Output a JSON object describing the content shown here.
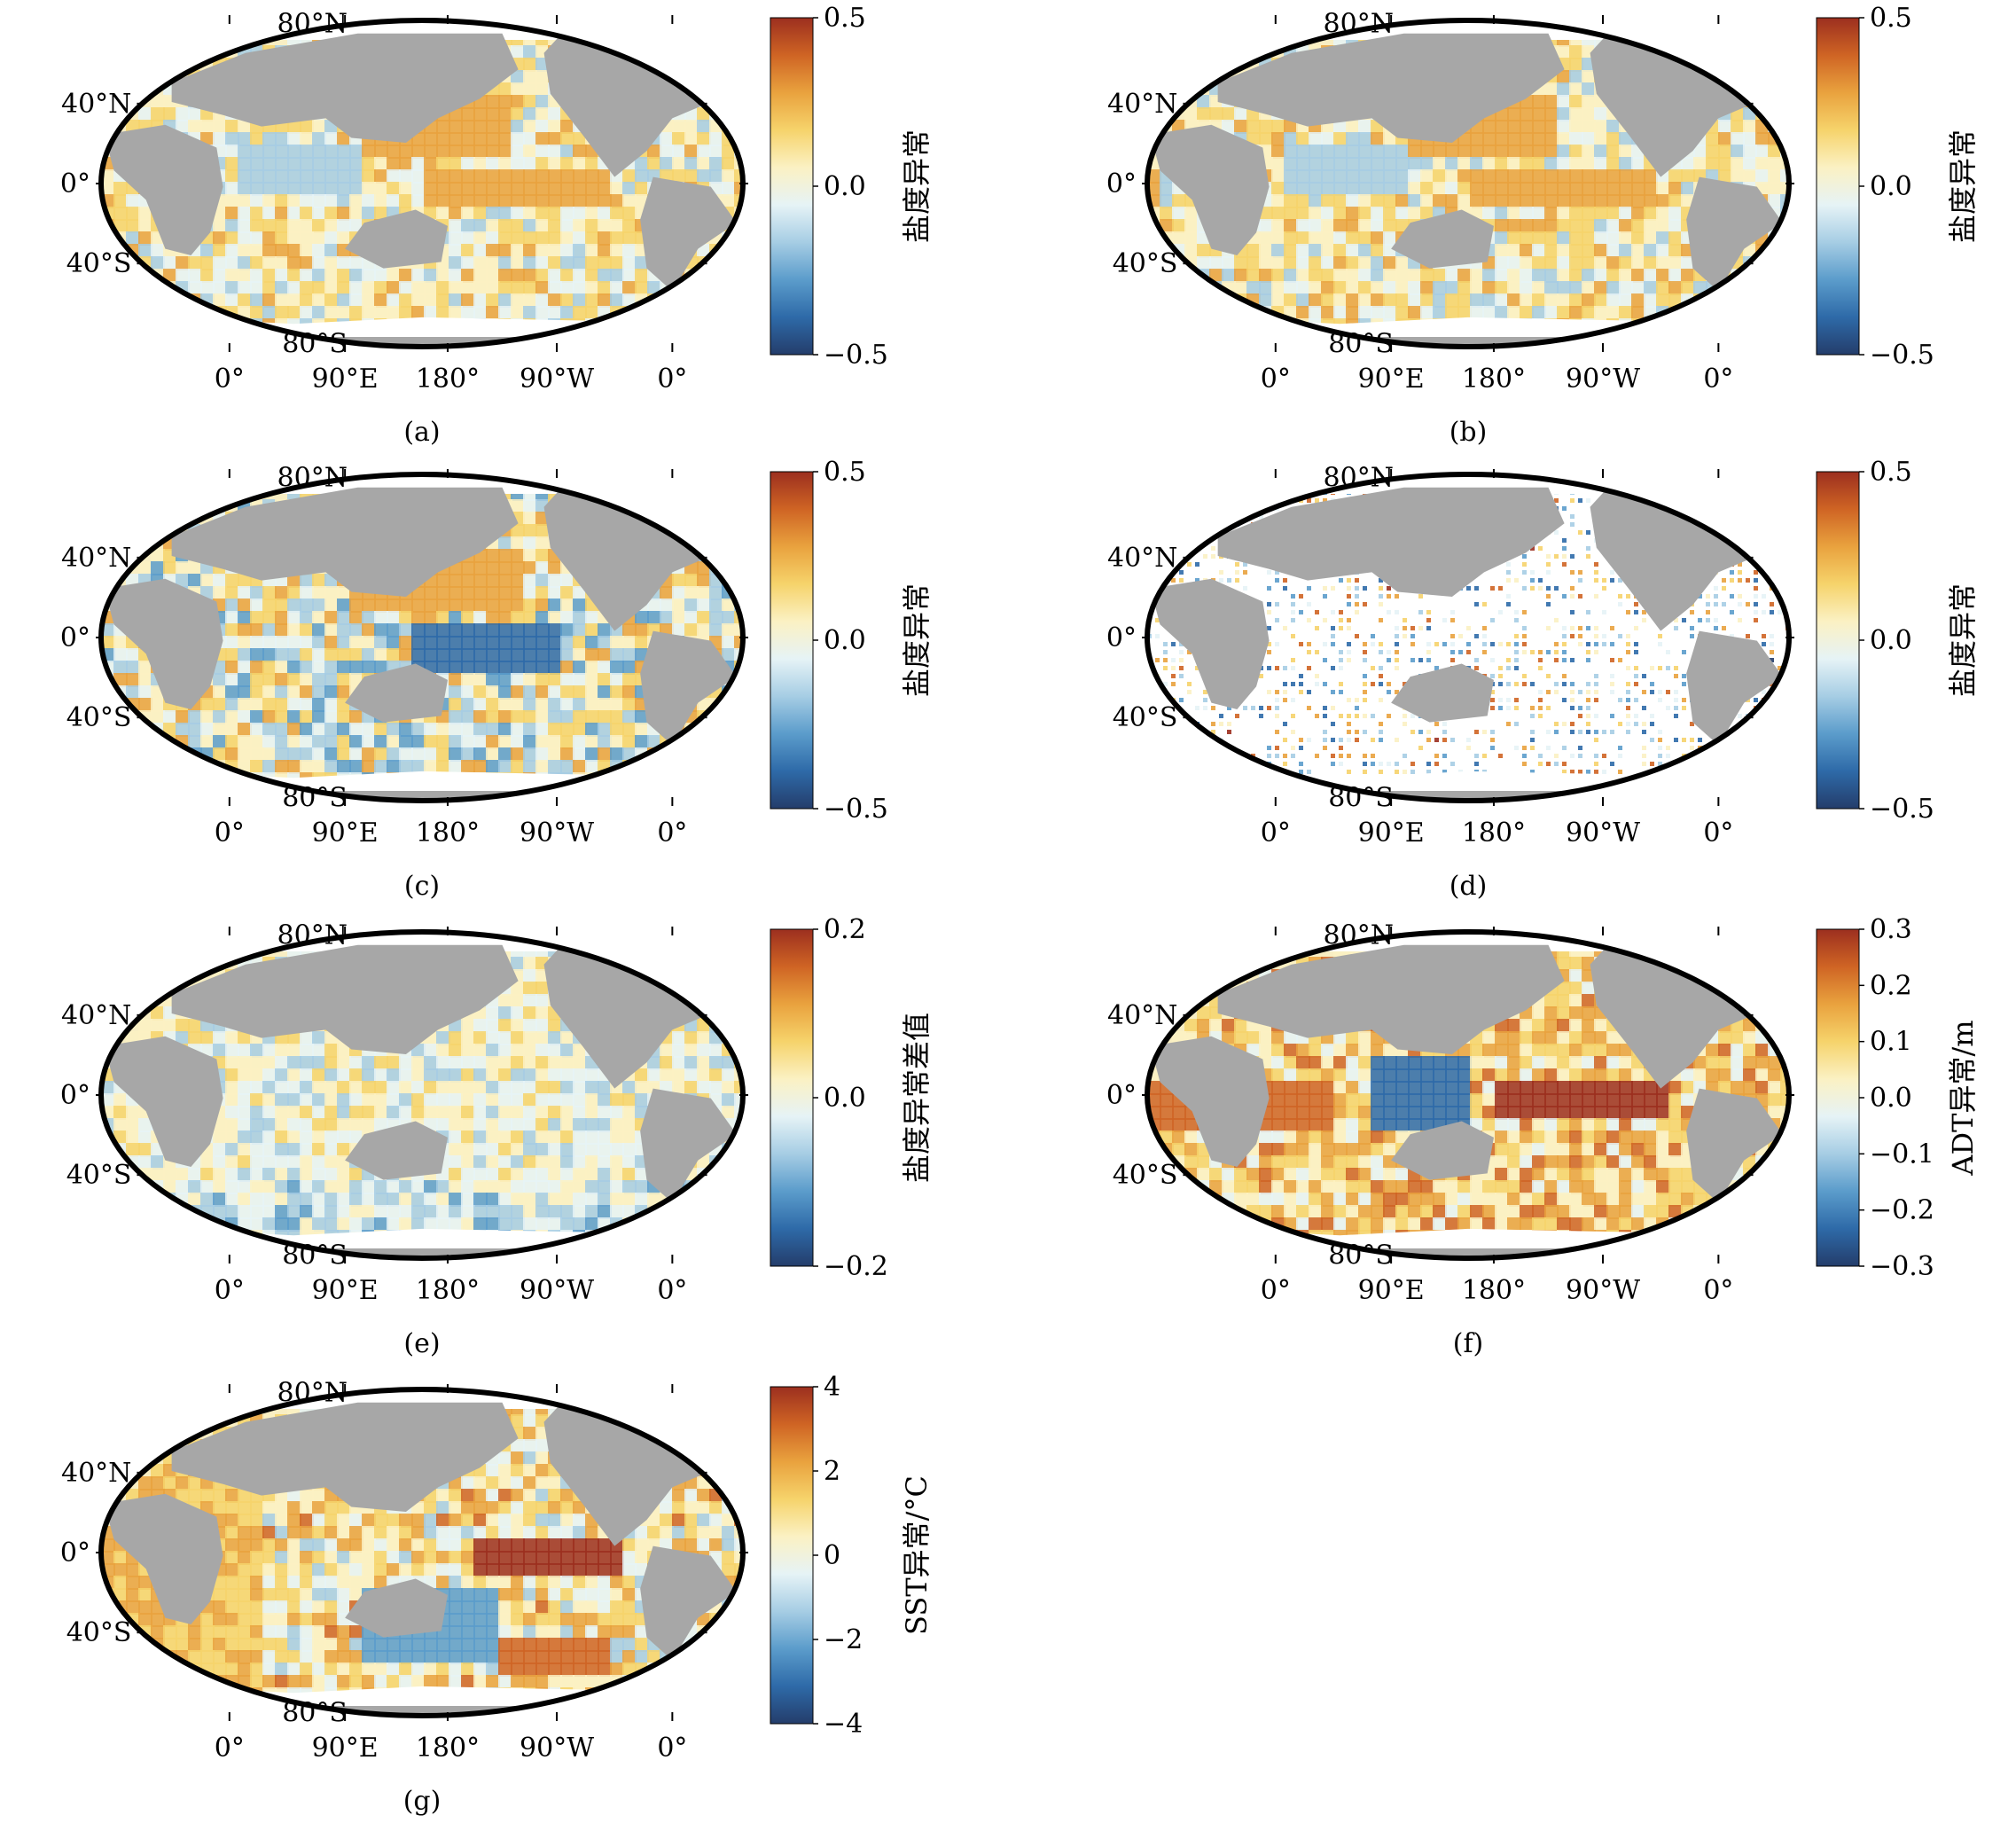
{
  "colorscale": {
    "stops": [
      "#243d6b",
      "#2e6aa8",
      "#5b9ccb",
      "#a6cde4",
      "#e6f3f6",
      "#fbf1c3",
      "#f6d36b",
      "#e9a23e",
      "#cf6424",
      "#9c2f1f"
    ]
  },
  "land_color": "#a7a7a7",
  "ice_color": "#ffffff",
  "lon_labels": [
    "0°",
    "90°E",
    "180°",
    "90°W",
    "0°"
  ],
  "lat_labels": [
    "80°N",
    "40°N",
    "0°",
    "40°S",
    "80°S"
  ],
  "panels": [
    {
      "id": "a",
      "label": "(a)",
      "colorbar_title": "盐度异常",
      "ticks": [
        "0.5",
        "0.0",
        "−0.5"
      ],
      "pattern": "salinity"
    },
    {
      "id": "b",
      "label": "(b)",
      "colorbar_title": "盐度异常",
      "ticks": [
        "0.5",
        "0.0",
        "−0.5"
      ],
      "pattern": "salinity"
    },
    {
      "id": "c",
      "label": "(c)",
      "colorbar_title": "盐度异常",
      "ticks": [
        "0.5",
        "0.0",
        "−0.5"
      ],
      "pattern": "salinity_strong"
    },
    {
      "id": "d",
      "label": "(d)",
      "colorbar_title": "盐度异常",
      "ticks": [
        "0.5",
        "0.0",
        "−0.5"
      ],
      "pattern": "sparse"
    },
    {
      "id": "e",
      "label": "(e)",
      "colorbar_title": "盐度异常差值",
      "ticks": [
        "0.2",
        "0.0",
        "−0.2"
      ],
      "pattern": "difference"
    },
    {
      "id": "f",
      "label": "(f)",
      "colorbar_title": "ADT异常/m",
      "ticks": [
        "0.3",
        "0.2",
        "0.1",
        "0.0",
        "−0.1",
        "−0.2",
        "−0.3"
      ],
      "pattern": "adt"
    },
    {
      "id": "g",
      "label": "(g)",
      "colorbar_title": "SST异常/°C",
      "ticks": [
        "4",
        "2",
        "0",
        "−2",
        "−4"
      ],
      "pattern": "sst"
    }
  ]
}
